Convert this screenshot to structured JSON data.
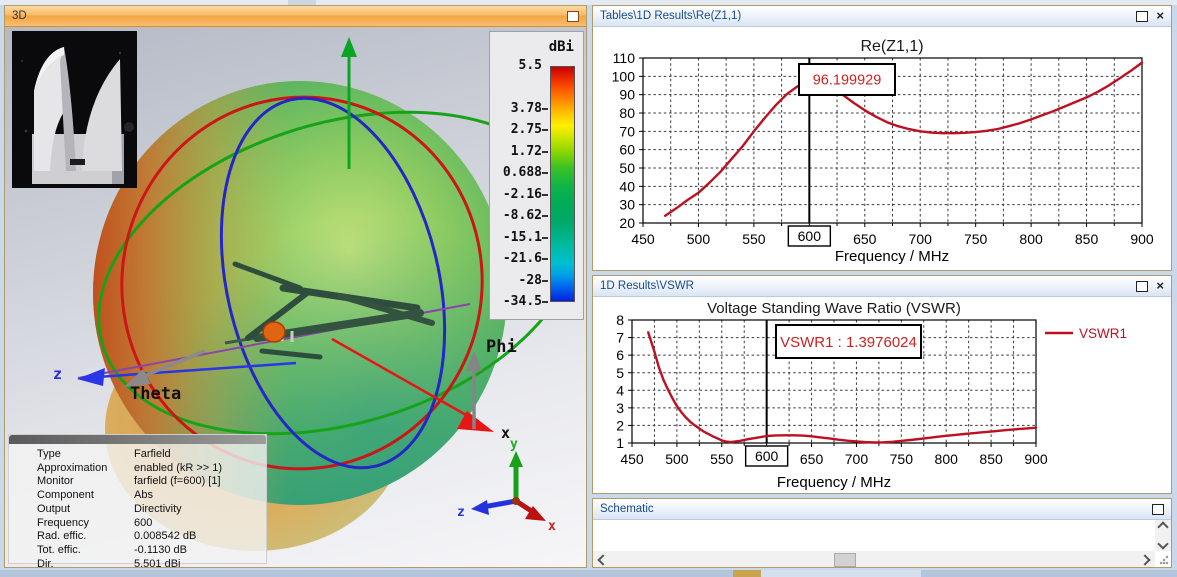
{
  "titles": {
    "panel_3d": "3D",
    "panel_chart1": "Tables\\1D Results\\Re(Z1,1)",
    "panel_chart2": "1D Results\\VSWR",
    "panel_schematic": "Schematic"
  },
  "icons": {
    "close_glyph": "×"
  },
  "colorbar": {
    "title": "dBi",
    "labels": [
      "5.5",
      "3.78",
      "2.75",
      "1.72",
      "0.688",
      "-2.16",
      "-8.62",
      "-15.1",
      "-21.6",
      "-28",
      "-34.5"
    ]
  },
  "scene_labels": {
    "theta": "Theta",
    "phi": "Phi",
    "x_axis": "x",
    "z_axis": "z",
    "triad_x": "x",
    "triad_y": "y",
    "triad_z": "z"
  },
  "info_table": {
    "rows": [
      {
        "label": "Type",
        "value": "Farfield"
      },
      {
        "label": "Approximation",
        "value": "enabled (kR >> 1)"
      },
      {
        "label": "Monitor",
        "value": "farfield (f=600) [1]"
      },
      {
        "label": "Component",
        "value": "Abs"
      },
      {
        "label": "Output",
        "value": "Directivity"
      },
      {
        "label": "Frequency",
        "value": "600"
      },
      {
        "label": "Rad. effic.",
        "value": "0.008542 dB"
      },
      {
        "label": "Tot. effic.",
        "value": "-0.1130 dB"
      },
      {
        "label": "Dir.",
        "value": "5.501 dBi"
      }
    ]
  },
  "chart_data": [
    {
      "type": "line",
      "title": "Re(Z1,1)",
      "xlabel": "Frequency / MHz",
      "xlim": [
        450,
        900
      ],
      "ylim": [
        20,
        110
      ],
      "xticks": [
        450,
        500,
        550,
        600,
        650,
        700,
        750,
        800,
        850,
        900
      ],
      "yticks": [
        20,
        30,
        40,
        50,
        60,
        70,
        80,
        90,
        100,
        110
      ],
      "x_minor_step": 25,
      "grid": "dashed",
      "marker": {
        "x": 600,
        "tick_label": "600",
        "value_label": "96.199929"
      },
      "series": [
        {
          "name": "Re(Z1,1)",
          "color": "#bb1122",
          "x": [
            470,
            480,
            490,
            500,
            510,
            520,
            530,
            540,
            550,
            560,
            570,
            580,
            590,
            600,
            610,
            620,
            630,
            640,
            650,
            660,
            670,
            680,
            690,
            700,
            710,
            720,
            730,
            740,
            750,
            760,
            770,
            780,
            790,
            800,
            810,
            820,
            830,
            840,
            850,
            860,
            870,
            880,
            890,
            900
          ],
          "y": [
            24,
            28,
            32.5,
            36.5,
            42,
            48,
            55,
            62,
            70,
            77.5,
            84.5,
            90.5,
            94.8,
            96.2,
            96,
            93.5,
            90,
            85.5,
            81.5,
            78,
            75,
            72.8,
            71.2,
            70,
            69.3,
            69,
            69,
            69.2,
            69.6,
            70.3,
            71.3,
            72.8,
            74.5,
            76.5,
            78.8,
            81,
            83.5,
            86,
            88.5,
            91.5,
            95,
            99,
            103,
            107.5
          ]
        }
      ]
    },
    {
      "type": "line",
      "title": "Voltage Standing Wave Ratio (VSWR)",
      "xlabel": "Frequency / MHz",
      "xlim": [
        450,
        900
      ],
      "ylim": [
        1,
        8
      ],
      "xticks": [
        450,
        500,
        550,
        600,
        650,
        700,
        750,
        800,
        850,
        900
      ],
      "yticks": [
        1,
        2,
        3,
        4,
        5,
        6,
        7,
        8
      ],
      "x_minor_step": 25,
      "grid": "dashed",
      "legend": [
        "VSWR1"
      ],
      "marker": {
        "x": 600,
        "tick_label": "600",
        "value_label": "VSWR1 : 1.3976024"
      },
      "series": [
        {
          "name": "VSWR1",
          "color": "#bb1122",
          "x": [
            468,
            475,
            480,
            485,
            490,
            495,
            500,
            505,
            510,
            515,
            520,
            530,
            540,
            550,
            555,
            560,
            570,
            580,
            590,
            600,
            610,
            620,
            630,
            640,
            650,
            660,
            670,
            680,
            690,
            700,
            710,
            720,
            730,
            740,
            750,
            760,
            770,
            780,
            790,
            800,
            810,
            820,
            830,
            840,
            850,
            860,
            870,
            880,
            890,
            900
          ],
          "y": [
            7.3,
            6.2,
            5.3,
            4.6,
            4.05,
            3.55,
            3.1,
            2.75,
            2.45,
            2.2,
            2.0,
            1.65,
            1.38,
            1.15,
            1.08,
            1.05,
            1.12,
            1.22,
            1.31,
            1.4,
            1.43,
            1.44,
            1.44,
            1.42,
            1.38,
            1.32,
            1.26,
            1.19,
            1.13,
            1.09,
            1.05,
            1.03,
            1.04,
            1.07,
            1.12,
            1.17,
            1.23,
            1.29,
            1.35,
            1.41,
            1.46,
            1.51,
            1.56,
            1.61,
            1.65,
            1.7,
            1.75,
            1.79,
            1.83,
            1.87
          ]
        }
      ]
    }
  ]
}
